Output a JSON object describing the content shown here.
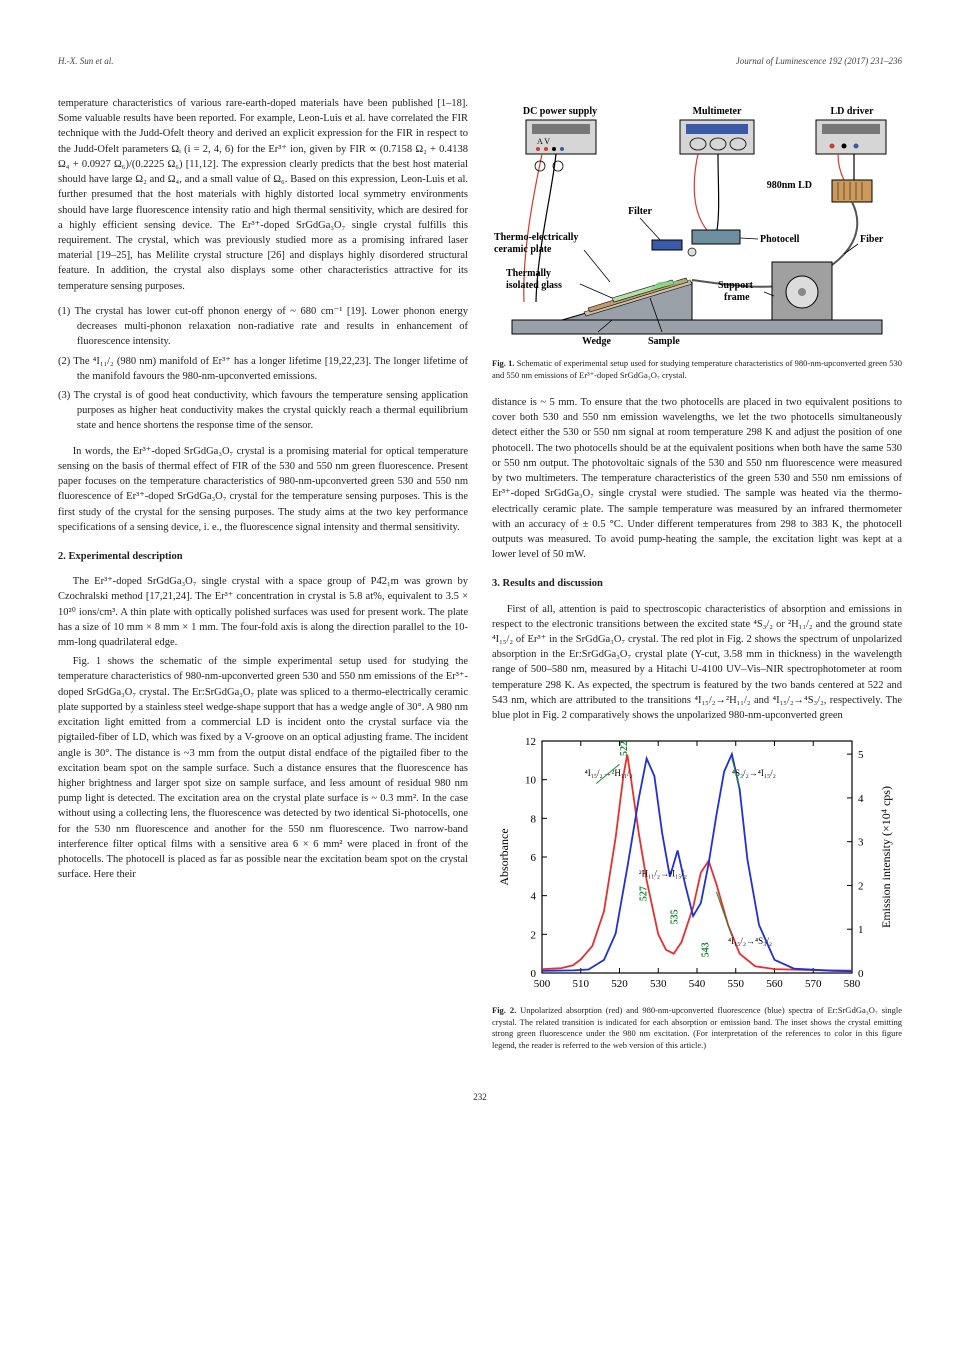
{
  "header": {
    "author_short": "H.-X. Sun et al.",
    "journal": "Journal of Luminescence 192 (2017) 231–236"
  },
  "left_column": {
    "intro_para": "temperature characteristics of various rare-earth-doped materials have been published [1–18]. Some valuable results have been reported. For example, Leon-Luis et al. have correlated the FIR technique with the Judd-Ofelt theory and derived an explicit expression for the FIR in respect to the Judd-Ofelt parameters Ωᵢ (i = 2, 4, 6) for the Er³⁺ ion, given by FIR ∝ (0.7158 Ω₂ + 0.4138 Ω₄ + 0.0927 Ω₆)/(0.2225 Ω₆) [11,12]. The expression clearly predicts that the best host material should have large Ω₂ and Ω₄, and a small value of Ω₆. Based on this expression, Leon-Luis et al. further presumed that the host materials with highly distorted local symmetry environments should have large fluorescence intensity ratio and high thermal sensitivity, which are desired for a highly efficient sensing device. The Er³⁺-doped SrGdGa₃O₇ single crystal fulfills this requirement. The crystal, which was previously studied more as a promising infrared laser material [19–25], has Melilite crystal structure [26] and displays highly disordered structural feature. In addition, the crystal also displays some other characteristics attractive for its temperature sensing purposes.",
    "list_items": [
      "(1) The crystal has lower cut-off phonon energy of ~ 680 cm⁻¹ [19]. Lower phonon energy decreases multi-phonon relaxation non-radiative rate and results in enhancement of fluorescence intensity.",
      "(2) The ⁴I₁₁/₂ (980 nm) manifold of Er³⁺ has a longer lifetime [19,22,23]. The longer lifetime of the manifold favours the 980-nm-upconverted emissions.",
      "(3) The crystal is of good heat conductivity, which favours the temperature sensing application purposes as higher heat conductivity makes the crystal quickly reach a thermal equilibrium state and hence shortens the response time of the sensor."
    ],
    "summary_para": "In words, the Er³⁺-doped SrGdGa₃O₇ crystal is a promising material for optical temperature sensing on the basis of thermal effect of FIR of the 530 and 550 nm green fluorescence. Present paper focuses on the temperature characteristics of 980-nm-upconverted green 530 and 550 nm fluorescence of Er³⁺-doped SrGdGa₃O₇ crystal for the temperature sensing purposes. This is the first study of the crystal for the sensing purposes. The study aims at the two key performance specifications of a sensing device, i. e., the fluorescence signal intensity and thermal sensitivity.",
    "section2_title": "2. Experimental description",
    "section2_p1": "The Er³⁺-doped SrGdGa₃O₇ single crystal with a space group of P4̄2₁m was grown by Czochralski method [17,21,24]. The Er³⁺ concentration in crystal is 5.8 at%, equivalent to 3.5 × 10²⁰ ions/cm³. A thin plate with optically polished surfaces was used for present work. The plate has a size of 10 mm × 8 mm × 1 mm. The four-fold axis is along the direction parallel to the 10-mm-long quadrilateral edge.",
    "section2_p2": "Fig. 1 shows the schematic of the simple experimental setup used for studying the temperature characteristics of 980-nm-upconverted green 530 and 550 nm emissions of the Er³⁺-doped SrGdGa₃O₇ crystal. The Er:SrGdGa₃O₇ plate was spliced to a thermo-electrically ceramic plate supported by a stainless steel wedge-shape support that has a wedge angle of 30°. A 980 nm excitation light emitted from a commercial LD is incident onto the crystal surface via the pigtailed-fiber of LD, which was fixed by a V-groove on an optical adjusting frame. The incident angle is 30°. The distance is ~3 mm from the output distal endface of the pigtailed fiber to the excitation beam spot on the sample surface. Such a distance ensures that the fluorescence has higher brightness and larger spot size on sample surface, and less amount of residual 980 nm pump light is detected. The excitation area on the crystal plate surface is ~ 0.3 mm². In the case without using a collecting lens, the fluorescence was detected by two identical Si-photocells, one for the 530 nm fluorescence and another for the 550 nm fluorescence. Two narrow-band interference filter optical films with a sensitive area 6 × 6 mm² were placed in front of the photocells. The photocell is placed as far as possible near the excitation beam spot on the crystal surface. Here their"
  },
  "right_column": {
    "fig1_caption_bold": "Fig. 1.",
    "fig1_caption": " Schematic of experimental setup used for studying temperature characteristics of 980-nm-upconverted green 530 and 550 nm emissions of Er³⁺-doped SrGdGa₃O₇ crystal.",
    "continuing_para": "distance is ~ 5 mm. To ensure that the two photocells are placed in two equivalent positions to cover both 530 and 550 nm emission wavelengths, we let the two photocells simultaneously detect either the 530 or 550 nm signal at room temperature 298 K and adjust the position of one photocell. The two photocells should be at the equivalent positions when both have the same 530 or 550 nm output. The photovoltaic signals of the 530 and 550 nm fluorescence were measured by two multimeters. The temperature characteristics of the green 530 and 550 nm emissions of Er³⁺-doped SrGdGa₃O₇ single crystal were studied. The sample was heated via the thermo-electrically ceramic plate. The sample temperature was measured by an infrared thermometer with an accuracy of ± 0.5 °C. Under different temperatures from 298 to 383 K, the photocell outputs was measured. To avoid pump-heating the sample, the excitation light was kept at a lower level of 50 mW.",
    "section3_title": "3. Results and discussion",
    "section3_p1": "First of all, attention is paid to spectroscopic characteristics of absorption and emissions in respect to the electronic transitions between the excited state ⁴S₃/₂ or ²H₁₁/₂ and the ground state ⁴I₁₅/₂ of Er³⁺ in the SrGdGa₃O₇ crystal. The red plot in Fig. 2 shows the spectrum of unpolarized absorption in the Er:SrGdGa₃O₇ crystal plate (Y-cut, 3.58 mm in thickness) in the wavelength range of 500–580 nm, measured by a Hitachi U-4100 UV–Vis–NIR spectrophotometer at room temperature 298 K. As expected, the spectrum is featured by the two bands centered at 522 and 543 nm, which are attributed to the transitions ⁴I₁₅/₂→²H₁₁/₂ and ⁴I₁₅/₂→⁴S₃/₂, respectively. The blue plot in Fig. 2 comparatively shows the unpolarized 980-nm-upconverted green",
    "fig2_caption_bold": "Fig. 2.",
    "fig2_caption": " Unpolarized absorption (red) and 980-nm-upconverted fluorescence (blue) spectra of Er:SrGdGa₃O₇ single crystal. The related transition is indicated for each absorption or emission band. The inset shows the crystal emitting strong green fluorescence under the 980 nm excitation. (For interpretation of the references to color in this figure legend, the reader is referred to the web version of this article.)"
  },
  "fig1": {
    "labels": {
      "dc_power": "DC power supply",
      "multimeter": "Multimeter",
      "ld_driver": "LD driver",
      "filter": "Filter",
      "ld": "980nm LD",
      "thermo_plate": "Thermo-electrically ceramic plate",
      "photocell": "Photocell",
      "fiber": "Fiber",
      "thermal_glass": "Thermally isolated glass",
      "support": "Support frame",
      "wedge": "Wedge",
      "sample": "Sample"
    },
    "colors": {
      "box_fill": "#d6d6d6",
      "box_stroke": "#000000",
      "device_dark": "#777777",
      "device_light": "#dcdcdc",
      "wire_red": "#d43a2a",
      "wire_black": "#000000",
      "ceramic": "#c19a6b",
      "wedge": "#9aa0a8",
      "glass": "#c8bfa8",
      "sample": "#b0e0a8",
      "screen_blue": "#3a5aa8",
      "fiber": "#555555",
      "photocell": "#6d8fa0",
      "ld_body": "#cc9a5a",
      "support": "#a0a0a0",
      "beam": "#80d080"
    }
  },
  "fig2": {
    "xlim": [
      500,
      580
    ],
    "ylim_left": [
      0,
      12
    ],
    "ylim_right": [
      0,
      5.3
    ],
    "xticks": [
      500,
      510,
      520,
      530,
      540,
      550,
      560,
      570,
      580
    ],
    "yleft_ticks": [
      0,
      2,
      4,
      6,
      8,
      10,
      12
    ],
    "yright_ticks": [
      0,
      1,
      2,
      3,
      4,
      5
    ],
    "xlabel": "",
    "ylabel_left": "Absorbance",
    "ylabel_right": "Emission intensity (×10⁴ cps)",
    "colors": {
      "red_line": "#e63030",
      "blue_line": "#2030d8",
      "axis": "#000000",
      "peak_label": "#1a8a30",
      "arrow": "#1a8a30",
      "inset_bg": "#2a2a2a",
      "inset_glow": "#30d030"
    },
    "line_width": 1.8,
    "peak_labels": [
      "522",
      "527",
      "535",
      "543"
    ],
    "transition_labels": {
      "left": "⁴I₁₅/₂→²H₁₁/₂",
      "mid": "²H₁₁/₂→⁴I₁₅/₂",
      "right_top": "⁴S₃/₂→⁴I₁₅/₂",
      "right_bot": "⁴I₁₅/₂→⁴S₃/₂"
    },
    "red_series": [
      [
        500,
        0.2
      ],
      [
        505,
        0.25
      ],
      [
        508,
        0.4
      ],
      [
        510,
        0.7
      ],
      [
        513,
        1.4
      ],
      [
        516,
        3.2
      ],
      [
        519,
        7.0
      ],
      [
        521,
        10.2
      ],
      [
        522,
        11.3
      ],
      [
        523,
        10.0
      ],
      [
        525,
        7.2
      ],
      [
        527,
        4.8
      ],
      [
        530,
        2.0
      ],
      [
        532,
        1.2
      ],
      [
        534,
        1.0
      ],
      [
        536,
        1.6
      ],
      [
        539,
        3.4
      ],
      [
        541,
        5.2
      ],
      [
        543,
        5.8
      ],
      [
        545,
        4.6
      ],
      [
        548,
        2.5
      ],
      [
        551,
        1.0
      ],
      [
        555,
        0.35
      ],
      [
        560,
        0.2
      ],
      [
        570,
        0.15
      ],
      [
        580,
        0.12
      ]
    ],
    "blue_series": [
      [
        500,
        0.05
      ],
      [
        508,
        0.06
      ],
      [
        512,
        0.08
      ],
      [
        516,
        0.3
      ],
      [
        519,
        0.9
      ],
      [
        522,
        2.4
      ],
      [
        525,
        4.0
      ],
      [
        527,
        4.9
      ],
      [
        529,
        4.5
      ],
      [
        531,
        3.2
      ],
      [
        533,
        2.2
      ],
      [
        535,
        2.8
      ],
      [
        537,
        2.0
      ],
      [
        539,
        1.3
      ],
      [
        541,
        1.6
      ],
      [
        543,
        2.5
      ],
      [
        545,
        3.6
      ],
      [
        547,
        4.6
      ],
      [
        549,
        5.0
      ],
      [
        551,
        4.2
      ],
      [
        553,
        2.6
      ],
      [
        556,
        1.1
      ],
      [
        560,
        0.3
      ],
      [
        565,
        0.1
      ],
      [
        575,
        0.05
      ],
      [
        580,
        0.04
      ]
    ]
  },
  "page_number": "232"
}
